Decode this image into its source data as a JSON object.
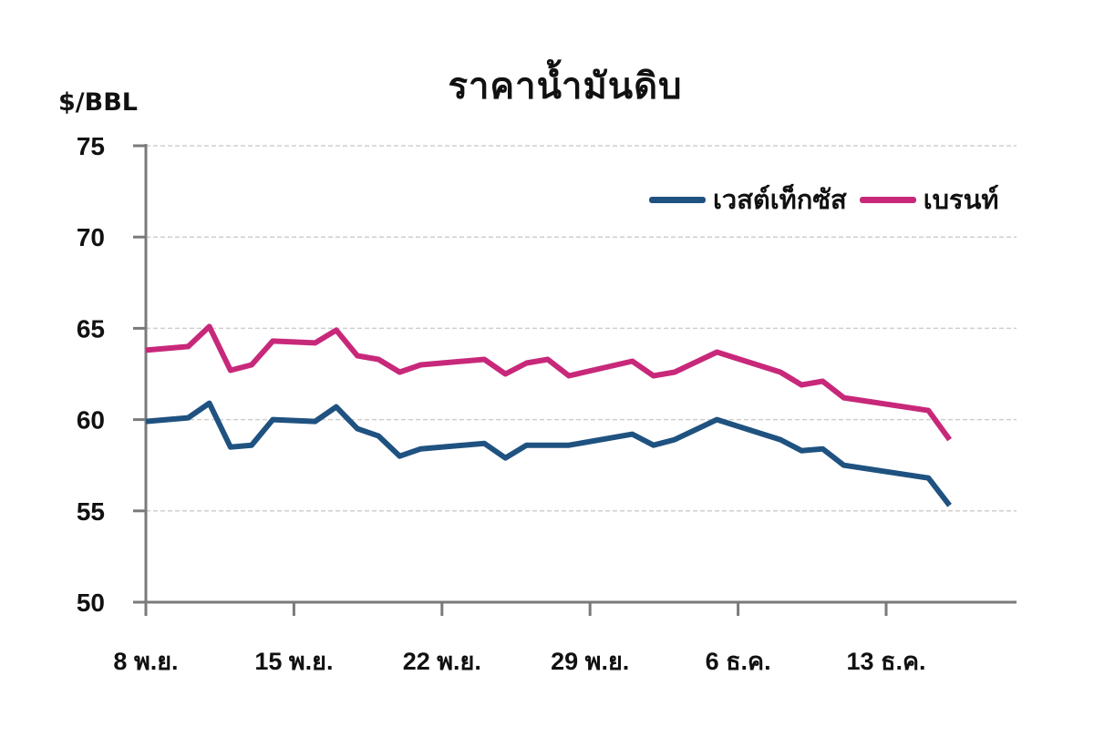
{
  "chart_data": {
    "type": "line",
    "title": "ราคาน้ำมันดิบ",
    "ylabel": "$/BBL",
    "xlabel": "",
    "ylim": [
      50,
      75
    ],
    "yticks": [
      50,
      55,
      60,
      65,
      70,
      75
    ],
    "grid": "horizontal dashed",
    "legend_position": "top-right",
    "xticks": [
      {
        "label": "8 พ.ย.",
        "day": 0
      },
      {
        "label": "15 พ.ย.",
        "day": 7
      },
      {
        "label": "22 พ.ย.",
        "day": 14
      },
      {
        "label": "29 พ.ย.",
        "day": 21
      },
      {
        "label": "6 ธ.ค.",
        "day": 28
      },
      {
        "label": "13 ธ.ค.",
        "day": 35
      }
    ],
    "x_days": [
      0,
      2,
      3,
      4,
      5,
      6,
      8,
      9,
      10,
      11,
      12,
      13,
      16,
      17,
      18,
      19,
      20,
      23,
      24,
      25,
      27,
      30,
      31,
      32,
      33,
      37,
      38
    ],
    "series": [
      {
        "name": "เวสต์เท็กซัส",
        "color": "#1f5280",
        "values": [
          59.9,
          60.1,
          60.9,
          58.5,
          58.6,
          60.0,
          59.9,
          60.7,
          59.5,
          59.1,
          58.0,
          58.4,
          58.7,
          57.9,
          58.6,
          58.6,
          58.6,
          59.2,
          58.6,
          58.9,
          60.0,
          58.9,
          58.3,
          58.4,
          57.5,
          56.8,
          55.3
        ]
      },
      {
        "name": "เบรนท์",
        "color": "#c8287a",
        "values": [
          63.8,
          64.0,
          65.1,
          62.7,
          63.0,
          64.3,
          64.2,
          64.9,
          63.5,
          63.3,
          62.6,
          63.0,
          63.3,
          62.5,
          63.1,
          63.3,
          62.4,
          63.2,
          62.4,
          62.6,
          63.7,
          62.6,
          61.9,
          62.1,
          61.2,
          60.5,
          58.9
        ]
      }
    ]
  },
  "colors": {
    "axis": "#7a7a7a",
    "grid": "#cfcfcf"
  }
}
